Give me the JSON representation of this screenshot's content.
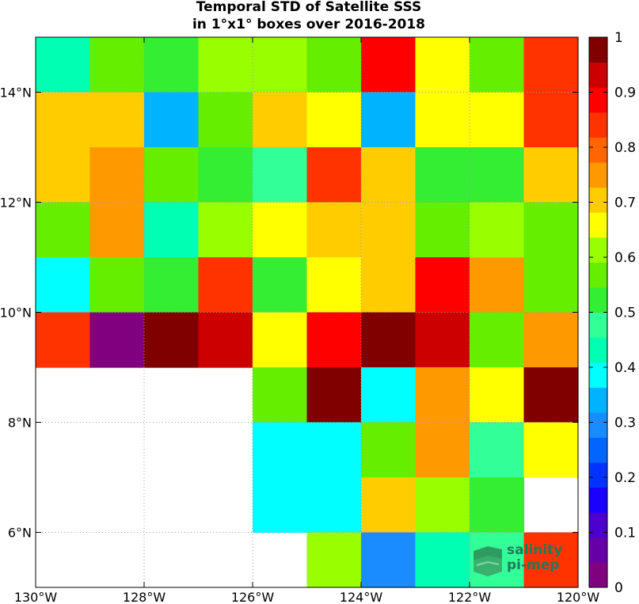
{
  "title_line1": "Temporal STD of Satellite SSS",
  "title_line2": "in 1°x1° boxes over 2016-2018",
  "logo": {
    "line1": "salinity",
    "line2": "pi-mep"
  },
  "chart_data": {
    "type": "heatmap",
    "title": "Temporal STD of Satellite SSS in 1°x1° boxes over 2016-2018",
    "x_ticks": [
      "130°W",
      "128°W",
      "126°W",
      "124°W",
      "122°W",
      "120°W"
    ],
    "y_ticks": [
      "14°N",
      "12°N",
      "10°N",
      "8°N",
      "6°N"
    ],
    "xlim": [
      -130,
      -120
    ],
    "ylim": [
      5,
      15
    ],
    "grid": true,
    "colorbar": {
      "range": [
        0,
        1
      ],
      "ticks": [
        "0",
        "0.1",
        "0.2",
        "0.3",
        "0.4",
        "0.5",
        "0.6",
        "0.7",
        "0.8",
        "0.9",
        "1"
      ],
      "colors": [
        "#800080",
        "#6600a6",
        "#4d00cc",
        "#1a00ff",
        "#0033ff",
        "#0066ff",
        "#1a8cff",
        "#00b3ff",
        "#00ffff",
        "#00ffb3",
        "#33ff99",
        "#33ee33",
        "#66ee00",
        "#99ff00",
        "#ffff00",
        "#ffcc00",
        "#ff9900",
        "#ff6600",
        "#ff3300",
        "#ff0000",
        "#cc0000",
        "#800000"
      ]
    },
    "lat_rows_north_to_south": [
      14.5,
      13.5,
      12.5,
      11.5,
      10.5,
      9.5,
      8.5,
      7.5,
      6.5,
      5.5
    ],
    "lon_cols_west_to_east": [
      -129.5,
      -128.5,
      -127.5,
      -126.5,
      -125.5,
      -124.5,
      -123.5,
      -122.5,
      -121.5,
      -120.5
    ],
    "values": [
      [
        0.42,
        0.57,
        0.5,
        0.62,
        0.62,
        0.57,
        0.88,
        0.68,
        0.57,
        0.82
      ],
      [
        0.72,
        0.72,
        0.33,
        0.57,
        0.72,
        0.68,
        0.33,
        0.68,
        0.68,
        0.82
      ],
      [
        0.72,
        0.77,
        0.57,
        0.5,
        0.48,
        0.82,
        0.72,
        0.5,
        0.5,
        0.72
      ],
      [
        0.57,
        0.77,
        0.42,
        0.62,
        0.68,
        0.72,
        0.72,
        0.57,
        0.62,
        0.57
      ],
      [
        0.38,
        0.57,
        0.5,
        0.82,
        0.5,
        0.68,
        0.72,
        0.88,
        0.77,
        0.57
      ],
      [
        0.82,
        0.02,
        0.98,
        0.93,
        0.68,
        0.88,
        0.98,
        0.93,
        0.57,
        0.77
      ],
      [
        null,
        null,
        null,
        null,
        0.57,
        0.98,
        0.38,
        0.77,
        0.68,
        0.98
      ],
      [
        null,
        null,
        null,
        null,
        0.38,
        0.38,
        0.57,
        0.77,
        0.48,
        0.68
      ],
      [
        null,
        null,
        null,
        null,
        0.38,
        0.38,
        0.72,
        0.62,
        0.5,
        null
      ],
      [
        null,
        null,
        null,
        null,
        null,
        0.62,
        0.28,
        0.42,
        0.48,
        0.82
      ]
    ]
  }
}
